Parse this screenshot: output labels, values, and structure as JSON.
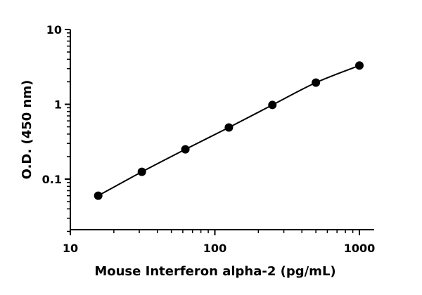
{
  "chart_data": {
    "type": "scatter",
    "title": "",
    "xlabel": "Mouse Interferon alpha-2 (pg/mL)",
    "ylabel": "O.D. (450 nm)",
    "x_scale": "log",
    "y_scale": "log",
    "xlim": [
      10,
      1000
    ],
    "ylim": [
      0.02,
      10
    ],
    "x_ticks": [
      {
        "value": 10,
        "label": "10"
      },
      {
        "value": 100,
        "label": "100"
      },
      {
        "value": 1000,
        "label": "1000"
      }
    ],
    "y_ticks": [
      {
        "value": 0.1,
        "label": "0.1"
      },
      {
        "value": 1,
        "label": "1"
      },
      {
        "value": 10,
        "label": "10"
      }
    ],
    "grid": false,
    "series": [
      {
        "x": [
          15.6,
          31.25,
          62.5,
          125,
          250,
          500,
          1000
        ],
        "y": [
          0.06,
          0.125,
          0.25,
          0.49,
          0.98,
          1.95,
          3.3
        ],
        "fit_line": true
      }
    ],
    "colors": {
      "points": "#000000",
      "line": "#000000"
    }
  }
}
